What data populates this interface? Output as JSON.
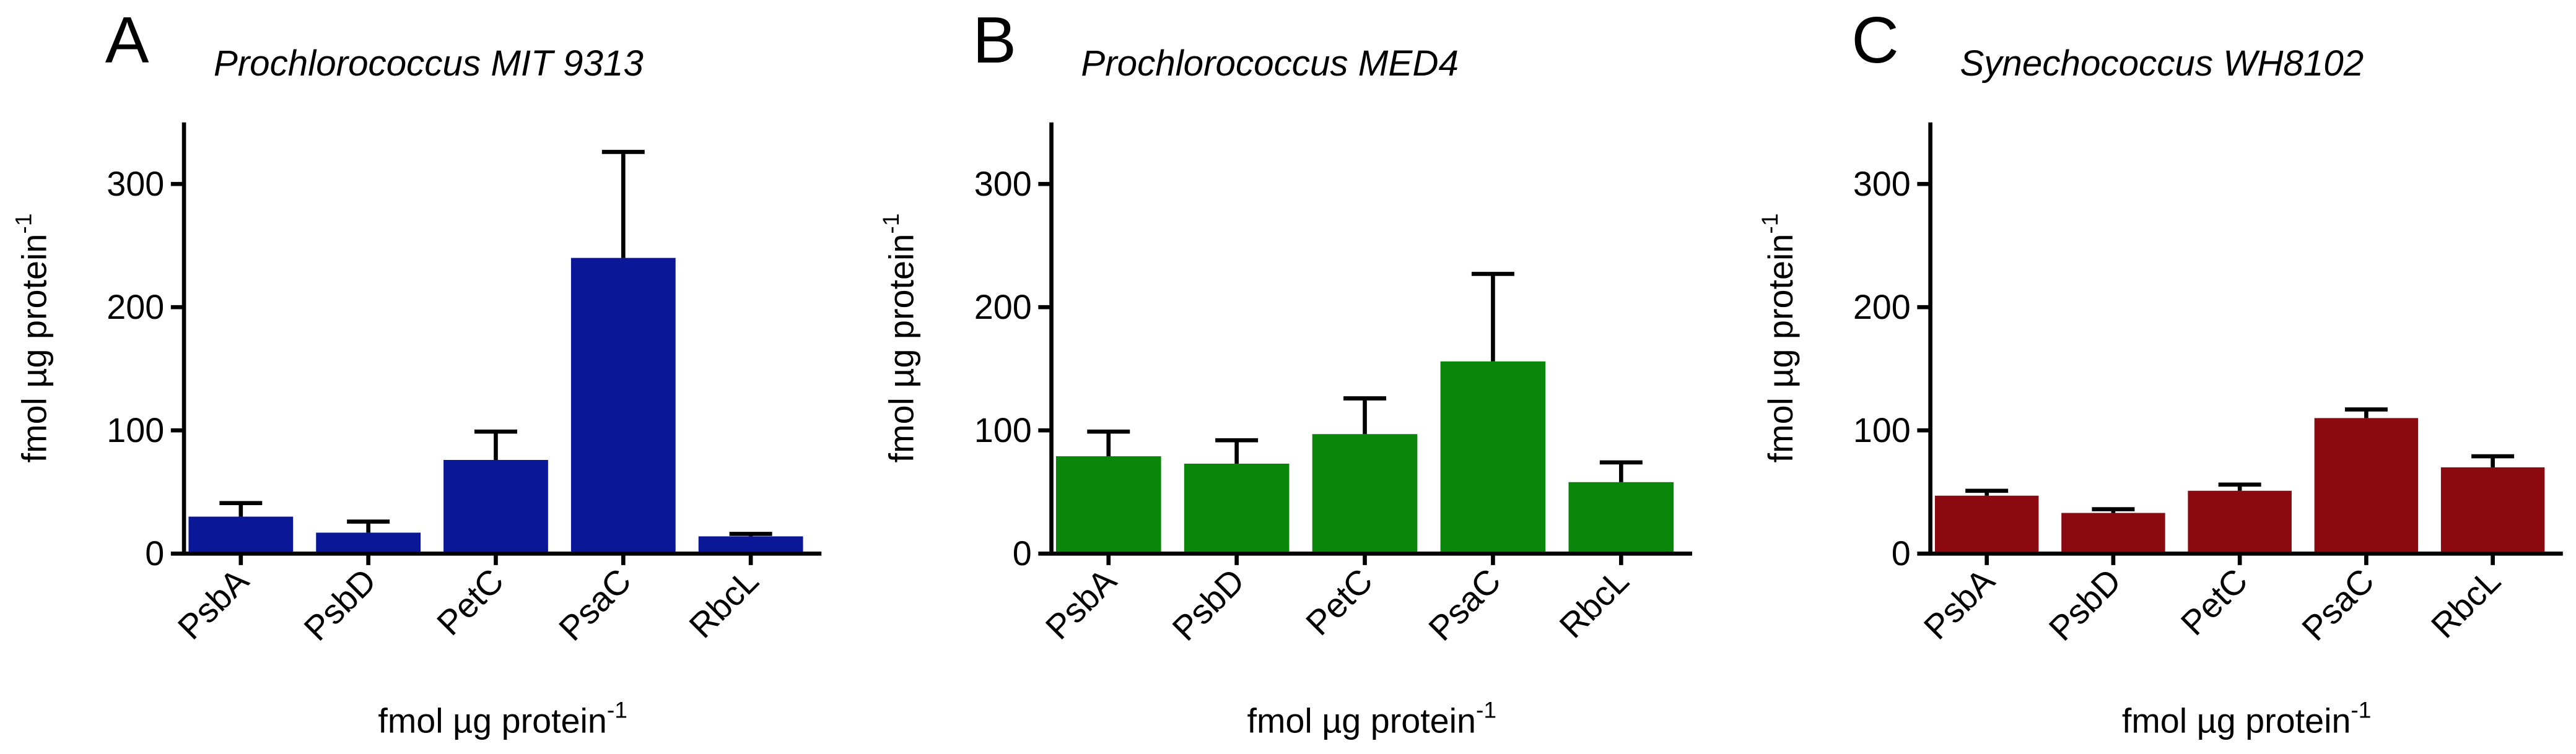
{
  "chart_data": [
    {
      "type": "bar",
      "panel": "A",
      "title": "Prochlorococcus MIT 9313",
      "y_label": "fmol µg protein",
      "y_label_sup": "-1",
      "x_label": "fmol µg protein",
      "x_label_sup": "-1",
      "categories": [
        "PsbA",
        "PsbD",
        "PetC",
        "PsaC",
        "RbcL"
      ],
      "values": [
        30,
        17,
        76,
        240,
        14
      ],
      "errors": [
        11,
        9,
        23,
        86,
        2
      ],
      "color": "#0a1796",
      "ylim": [
        0,
        350
      ],
      "yticks": [
        0,
        100,
        200,
        300
      ]
    },
    {
      "type": "bar",
      "panel": "B",
      "title": "Prochlorococcus MED4",
      "y_label": "fmol µg protein",
      "y_label_sup": "-1",
      "x_label": "fmol µg protein",
      "x_label_sup": "-1",
      "categories": [
        "PsbA",
        "PsbD",
        "PetC",
        "PsaC",
        "RbcL"
      ],
      "values": [
        79,
        73,
        97,
        156,
        58
      ],
      "errors": [
        20,
        19,
        29,
        71,
        16
      ],
      "color": "#0a870a",
      "ylim": [
        0,
        350
      ],
      "yticks": [
        0,
        100,
        200,
        300
      ]
    },
    {
      "type": "bar",
      "panel": "C",
      "title": "Synechococcus WH8102",
      "y_label": "fmol µg protein",
      "y_label_sup": "-1",
      "x_label": "fmol µg protein",
      "x_label_sup": "-1",
      "categories": [
        "PsbA",
        "PsbD",
        "PetC",
        "PsaC",
        "RbcL"
      ],
      "values": [
        47,
        33,
        51,
        110,
        70
      ],
      "errors": [
        4,
        3,
        5,
        7,
        9
      ],
      "color": "#8a0a10",
      "ylim": [
        0,
        350
      ],
      "yticks": [
        0,
        100,
        200,
        300
      ]
    }
  ]
}
